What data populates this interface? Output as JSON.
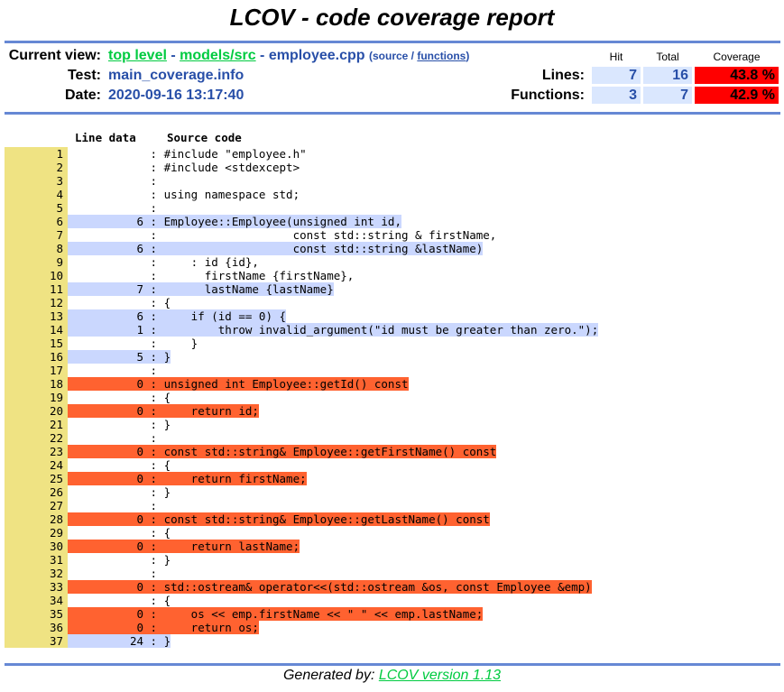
{
  "title": "LCOV - code coverage report",
  "header": {
    "current_view_label": "Current view:",
    "crumb_top": "top level",
    "crumb_sep1": " - ",
    "crumb_dir": "models/src",
    "crumb_sep2": " - ",
    "crumb_file": "employee.cpp",
    "view_open": "(",
    "view_source": "source",
    "view_sep": " / ",
    "view_functions": "functions",
    "view_close": ")",
    "test_label": "Test:",
    "test_value": "main_coverage.info",
    "date_label": "Date:",
    "date_value": "2020-09-16 13:17:40"
  },
  "summary": {
    "col_hit": "Hit",
    "col_total": "Total",
    "col_coverage": "Coverage",
    "lines_label": "Lines:",
    "lines_hit": "7",
    "lines_total": "16",
    "lines_coverage": "43.8 %",
    "functions_label": "Functions:",
    "functions_hit": "3",
    "functions_total": "7",
    "functions_coverage": "42.9 %",
    "colors": {
      "low": "#ff0000",
      "hit_bg": "#dae7fe"
    }
  },
  "code_header": {
    "line_data": "Line data",
    "source_code": "Source code"
  },
  "source_lines": [
    {
      "n": "1",
      "c": "",
      "s": "#include \"employee.h\"",
      "st": ""
    },
    {
      "n": "2",
      "c": "",
      "s": "#include <stdexcept>",
      "st": ""
    },
    {
      "n": "3",
      "c": "",
      "s": "",
      "st": ""
    },
    {
      "n": "4",
      "c": "",
      "s": "using namespace std;",
      "st": ""
    },
    {
      "n": "5",
      "c": "",
      "s": "",
      "st": ""
    },
    {
      "n": "6",
      "c": "6",
      "s": "Employee::Employee(unsigned int id,",
      "st": "hit"
    },
    {
      "n": "7",
      "c": "",
      "s": "                   const std::string & firstName,",
      "st": ""
    },
    {
      "n": "8",
      "c": "6",
      "s": "                   const std::string &lastName)",
      "st": "hit"
    },
    {
      "n": "9",
      "c": "",
      "s": "    : id {id},",
      "st": ""
    },
    {
      "n": "10",
      "c": "",
      "s": "      firstName {firstName},",
      "st": ""
    },
    {
      "n": "11",
      "c": "7",
      "s": "      lastName {lastName}",
      "st": "hit"
    },
    {
      "n": "12",
      "c": "",
      "s": "{",
      "st": ""
    },
    {
      "n": "13",
      "c": "6",
      "s": "    if (id == 0) {",
      "st": "hit"
    },
    {
      "n": "14",
      "c": "1",
      "s": "        throw invalid_argument(\"id must be greater than zero.\");",
      "st": "hit"
    },
    {
      "n": "15",
      "c": "",
      "s": "    }",
      "st": ""
    },
    {
      "n": "16",
      "c": "5",
      "s": "}",
      "st": "hit"
    },
    {
      "n": "17",
      "c": "",
      "s": "",
      "st": ""
    },
    {
      "n": "18",
      "c": "0",
      "s": "unsigned int Employee::getId() const",
      "st": "miss"
    },
    {
      "n": "19",
      "c": "",
      "s": "{",
      "st": ""
    },
    {
      "n": "20",
      "c": "0",
      "s": "    return id;",
      "st": "miss"
    },
    {
      "n": "21",
      "c": "",
      "s": "}",
      "st": ""
    },
    {
      "n": "22",
      "c": "",
      "s": "",
      "st": ""
    },
    {
      "n": "23",
      "c": "0",
      "s": "const std::string& Employee::getFirstName() const",
      "st": "miss"
    },
    {
      "n": "24",
      "c": "",
      "s": "{",
      "st": ""
    },
    {
      "n": "25",
      "c": "0",
      "s": "    return firstName;",
      "st": "miss"
    },
    {
      "n": "26",
      "c": "",
      "s": "}",
      "st": ""
    },
    {
      "n": "27",
      "c": "",
      "s": "",
      "st": ""
    },
    {
      "n": "28",
      "c": "0",
      "s": "const std::string& Employee::getLastName() const",
      "st": "miss"
    },
    {
      "n": "29",
      "c": "",
      "s": "{",
      "st": ""
    },
    {
      "n": "30",
      "c": "0",
      "s": "    return lastName;",
      "st": "miss"
    },
    {
      "n": "31",
      "c": "",
      "s": "}",
      "st": ""
    },
    {
      "n": "32",
      "c": "",
      "s": "",
      "st": ""
    },
    {
      "n": "33",
      "c": "0",
      "s": "std::ostream& operator<<(std::ostream &os, const Employee &emp)",
      "st": "miss"
    },
    {
      "n": "34",
      "c": "",
      "s": "{",
      "st": ""
    },
    {
      "n": "35",
      "c": "0",
      "s": "    os << emp.firstName << \" \" << emp.lastName;",
      "st": "miss"
    },
    {
      "n": "36",
      "c": "0",
      "s": "    return os;",
      "st": "miss"
    },
    {
      "n": "37",
      "c": "24",
      "s": "}",
      "st": "hit"
    }
  ],
  "footer": {
    "prefix": "Generated by: ",
    "link": "LCOV version 1.13"
  }
}
